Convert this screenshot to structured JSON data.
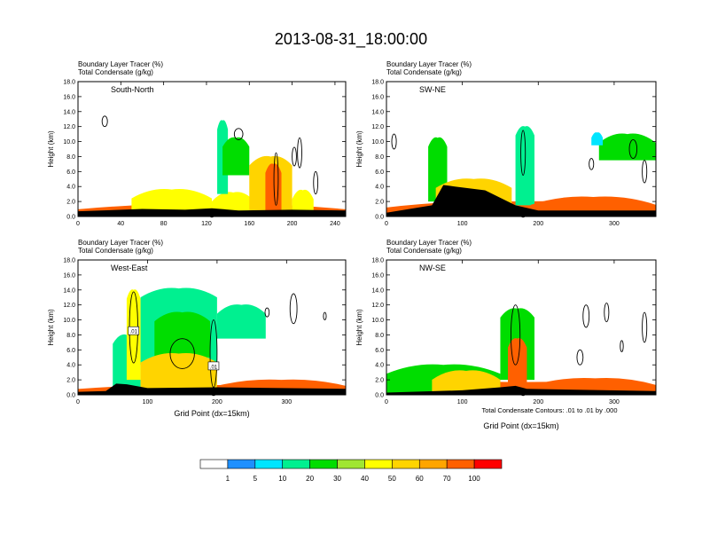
{
  "figure": {
    "title": "2013-08-31_18:00:00",
    "contour_note": "Total Condensate Contours: .01 to .01 by .000"
  },
  "colors": {
    "levels": [
      "#ffffff",
      "#1e90ff",
      "#00e5ff",
      "#00f090",
      "#00dd00",
      "#a0e632",
      "#ffff00",
      "#ffd400",
      "#ffa500",
      "#ff6000",
      "#ff0000"
    ],
    "frame": "#000000",
    "contour": "#000000",
    "terrain": "#000000"
  },
  "colorbar": {
    "labels": [
      "1",
      "5",
      "10",
      "20",
      "30",
      "40",
      "50",
      "60",
      "70",
      "100"
    ]
  },
  "chart_data": [
    {
      "type": "heatmap",
      "panel_label": "South-North",
      "var_line1": "Boundary Layer Tracer   (%)",
      "var_line2": "Total Condensate   (g/kg)",
      "ylabel": "Height (km)",
      "xlabel": "",
      "xlim": [
        0,
        250
      ],
      "ylim": [
        0,
        18
      ],
      "xticks": [
        "0",
        "40",
        "80",
        "120",
        "160",
        "200",
        "240"
      ],
      "yticks": [
        "0.0",
        "2.0",
        "4.0",
        "6.0",
        "8.0",
        "10.0",
        "12.0",
        "14.0",
        "16.0",
        "18.0"
      ],
      "marker_x": 125,
      "features": [
        {
          "x": [
            0,
            250
          ],
          "top": 1.6,
          "value": 70
        },
        {
          "x": [
            50,
            125
          ],
          "top": 3.6,
          "value": 45
        },
        {
          "x": [
            125,
            165
          ],
          "top": 3.2,
          "value": 40
        },
        {
          "x": [
            130,
            140
          ],
          "top": 12.8,
          "value": 15,
          "base": 3.0
        },
        {
          "x": [
            135,
            160
          ],
          "top": 10.5,
          "value": 25,
          "base": 5.5
        },
        {
          "x": [
            160,
            200
          ],
          "top": 8.0,
          "value": 50
        },
        {
          "x": [
            175,
            190
          ],
          "top": 7.0,
          "value": 95
        },
        {
          "x": [
            200,
            220
          ],
          "top": 3.5,
          "value": 40
        }
      ],
      "terrain": [
        [
          0,
          0.7
        ],
        [
          60,
          1.0
        ],
        [
          100,
          0.9
        ],
        [
          125,
          1.1
        ],
        [
          150,
          0.8
        ],
        [
          200,
          0.9
        ],
        [
          250,
          0.8
        ]
      ],
      "contours": [
        {
          "x": 25,
          "y": 12.7,
          "w": 5,
          "h": 1.4
        },
        {
          "x": 207,
          "y": 8.5,
          "w": 4,
          "h": 4.0
        },
        {
          "x": 222,
          "y": 4.5,
          "w": 4,
          "h": 3.0
        },
        {
          "x": 185,
          "y": 5.0,
          "w": 4,
          "h": 7.0
        },
        {
          "x": 150,
          "y": 11.0,
          "w": 8,
          "h": 1.5
        },
        {
          "x": 202,
          "y": 8.0,
          "w": 4,
          "h": 2.5
        }
      ]
    },
    {
      "type": "heatmap",
      "panel_label": "SW-NE",
      "var_line1": "Boundary Layer Tracer   (%)",
      "var_line2": "Total Condensate   (g/kg)",
      "ylabel": "Height (km)",
      "xlabel": "",
      "xlim": [
        0,
        355
      ],
      "ylim": [
        0,
        18
      ],
      "xticks": [
        "0",
        "100",
        "200",
        "300"
      ],
      "yticks": [
        "0.0",
        "2.0",
        "4.0",
        "6.0",
        "8.0",
        "10.0",
        "12.0",
        "14.0",
        "16.0",
        "18.0"
      ],
      "marker_x": 180,
      "features": [
        {
          "x": [
            0,
            355
          ],
          "top": 2.0,
          "value": 70
        },
        {
          "x": [
            55,
            80
          ],
          "top": 10.5,
          "value": 20,
          "base": 2.0
        },
        {
          "x": [
            65,
            165
          ],
          "top": 5.0,
          "value": 55
        },
        {
          "x": [
            170,
            195
          ],
          "top": 12.0,
          "value": 15,
          "base": 1.5
        },
        {
          "x": [
            280,
            355
          ],
          "top": 11.0,
          "value": 20,
          "base": 7.5
        },
        {
          "x": [
            270,
            285
          ],
          "top": 11.2,
          "value": 5,
          "base": 9.5
        },
        {
          "x": [
            190,
            355
          ],
          "top": 2.6,
          "value": 80
        }
      ],
      "terrain": [
        [
          0,
          0.5
        ],
        [
          60,
          1.5
        ],
        [
          75,
          4.2
        ],
        [
          90,
          4.0
        ],
        [
          130,
          3.5
        ],
        [
          170,
          1.5
        ],
        [
          200,
          0.8
        ],
        [
          355,
          0.8
        ]
      ],
      "contours": [
        {
          "x": 10,
          "y": 10.0,
          "w": 6,
          "h": 2.0
        },
        {
          "x": 180,
          "y": 8.5,
          "w": 6,
          "h": 6.0
        },
        {
          "x": 325,
          "y": 9.0,
          "w": 10,
          "h": 2.5
        },
        {
          "x": 270,
          "y": 7.0,
          "w": 6,
          "h": 1.5
        },
        {
          "x": 340,
          "y": 6.0,
          "w": 6,
          "h": 3.0
        }
      ]
    },
    {
      "type": "heatmap",
      "panel_label": "West-East",
      "var_line1": "Boundary Layer Tracer   (%)",
      "var_line2": "Total Condensate   (g/kg)",
      "ylabel": "Height (km)",
      "xlabel": "Grid Point (dx=15km)",
      "xlim": [
        0,
        385
      ],
      "ylim": [
        0,
        18
      ],
      "xticks": [
        "0",
        "100",
        "200",
        "300"
      ],
      "yticks": [
        "0.0",
        "2.0",
        "4.0",
        "6.0",
        "8.0",
        "10.0",
        "12.0",
        "14.0",
        "16.0",
        "18.0"
      ],
      "marker_x": 195,
      "contour_labels": [
        {
          "x": 80,
          "y": 8.5,
          "text": ".01"
        },
        {
          "x": 195,
          "y": 3.8,
          "text": ".01"
        }
      ],
      "features": [
        {
          "x": [
            0,
            385
          ],
          "top": 1.3,
          "value": 70
        },
        {
          "x": [
            50,
            90
          ],
          "top": 8.0,
          "value": 15,
          "base": 1.0
        },
        {
          "x": [
            70,
            90
          ],
          "top": 14.0,
          "value": 45,
          "base": 2.0
        },
        {
          "x": [
            90,
            200
          ],
          "top": 14.2,
          "value": 10,
          "base": 4.0
        },
        {
          "x": [
            110,
            190
          ],
          "top": 11.0,
          "value": 25,
          "base": 5.0
        },
        {
          "x": [
            90,
            200
          ],
          "top": 5.5,
          "value": 55
        },
        {
          "x": [
            200,
            270
          ],
          "top": 12.0,
          "value": 15,
          "base": 7.5
        },
        {
          "x": [
            200,
            385
          ],
          "top": 2.0,
          "value": 80
        }
      ],
      "terrain": [
        [
          0,
          0.4
        ],
        [
          40,
          0.5
        ],
        [
          55,
          1.5
        ],
        [
          70,
          1.4
        ],
        [
          100,
          0.9
        ],
        [
          200,
          1.0
        ],
        [
          385,
          0.8
        ]
      ],
      "contours": [
        {
          "x": 80,
          "y": 9.0,
          "w": 12,
          "h": 9.5
        },
        {
          "x": 195,
          "y": 5.5,
          "w": 10,
          "h": 9.0
        },
        {
          "x": 272,
          "y": 11.0,
          "w": 6,
          "h": 1.2
        },
        {
          "x": 310,
          "y": 11.5,
          "w": 10,
          "h": 4.0
        },
        {
          "x": 355,
          "y": 10.5,
          "w": 4,
          "h": 1.0
        },
        {
          "x": 150,
          "y": 5.5,
          "w": 35,
          "h": 4.0
        }
      ]
    },
    {
      "type": "heatmap",
      "panel_label": "NW-SE",
      "var_line1": "Boundary Layer Tracer   (%)",
      "var_line2": "Total Condensate   (g/kg)",
      "ylabel": "Height (km)",
      "xlabel": "Grid Point (dx=15km)",
      "xlim": [
        0,
        355
      ],
      "ylim": [
        0,
        18
      ],
      "xticks": [
        "0",
        "100",
        "200",
        "300"
      ],
      "yticks": [
        "0.0",
        "2.0",
        "4.0",
        "6.0",
        "8.0",
        "10.0",
        "12.0",
        "14.0",
        "16.0",
        "18.0"
      ],
      "marker_x": 180,
      "features": [
        {
          "x": [
            0,
            355
          ],
          "top": 1.7,
          "value": 70
        },
        {
          "x": [
            0,
            150
          ],
          "top": 4.0,
          "value": 20
        },
        {
          "x": [
            60,
            150
          ],
          "top": 3.2,
          "value": 55
        },
        {
          "x": [
            150,
            195
          ],
          "top": 11.5,
          "value": 20,
          "base": 2.0
        },
        {
          "x": [
            160,
            185
          ],
          "top": 7.5,
          "value": 80,
          "base": 1.0
        },
        {
          "x": [
            195,
            355
          ],
          "top": 2.2,
          "value": 85
        }
      ],
      "terrain": [
        [
          0,
          0.3
        ],
        [
          100,
          0.6
        ],
        [
          150,
          1.0
        ],
        [
          170,
          1.2
        ],
        [
          185,
          0.8
        ],
        [
          355,
          0.5
        ]
      ],
      "contours": [
        {
          "x": 170,
          "y": 8.0,
          "w": 12,
          "h": 8.0
        },
        {
          "x": 263,
          "y": 10.5,
          "w": 8,
          "h": 3.0
        },
        {
          "x": 290,
          "y": 11.0,
          "w": 6,
          "h": 2.5
        },
        {
          "x": 340,
          "y": 9.0,
          "w": 6,
          "h": 4.0
        },
        {
          "x": 310,
          "y": 6.5,
          "w": 4,
          "h": 1.5
        },
        {
          "x": 255,
          "y": 5.0,
          "w": 8,
          "h": 2.0
        }
      ]
    }
  ]
}
